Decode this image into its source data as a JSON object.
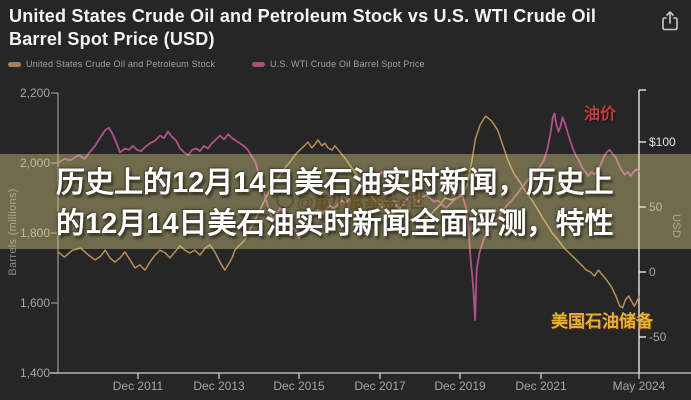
{
  "header": {
    "title": "United States Crude Oil and Petroleum Stock vs U.S. WTI Crude Oil Barrel Spot Price (USD)"
  },
  "legend": [
    {
      "label": "United States Crude Oil and Petroleum Stock",
      "color": "#a5815a"
    },
    {
      "label": "U.S. WTI Crude Oil Barrel Spot Price",
      "color": "#a6527f"
    }
  ],
  "overlay": {
    "heading_line1": "历史上的12月14日美石油实时新闻，历史上",
    "heading_line2": "的12月14日美石油实时新闻全面评测，特性",
    "watermark": "@童小富基金e世"
  },
  "annotations": {
    "price_label": "油价",
    "stock_label": "美国石油储备"
  },
  "chart_data": {
    "type": "line",
    "title": "United States Crude Oil and Petroleum Stock vs U.S. WTI Crude Oil Barrel Spot Price (USD)",
    "legend_position": "top-left",
    "grid": false,
    "axes": {
      "left": {
        "title": "Barrels (millions)",
        "ticks": [
          "2,200",
          "2,000",
          "1,800",
          "1,600",
          "1,400"
        ],
        "range": [
          1400,
          2200
        ]
      },
      "right": {
        "title": "USD",
        "ticks": [
          "$100",
          "50",
          "0",
          "-50"
        ],
        "range": [
          -50,
          100
        ]
      },
      "x": {
        "ticks": [
          "Dec 2011",
          "Dec 2013",
          "Dec 2015",
          "Dec 2017",
          "Dec 2019",
          "Dec 2021",
          "May 2024"
        ],
        "range_years": [
          2009.94,
          2024.37
        ]
      }
    },
    "series": [
      {
        "name": "United States Crude Oil and Petroleum Stock",
        "axis": "left",
        "units": "million barrels",
        "color": "#b59059",
        "points": [
          [
            2009.94,
            1746
          ],
          [
            2010.1,
            1731
          ],
          [
            2010.3,
            1751
          ],
          [
            2010.5,
            1757
          ],
          [
            2010.7,
            1737
          ],
          [
            2010.86,
            1723
          ],
          [
            2011.0,
            1734
          ],
          [
            2011.11,
            1751
          ],
          [
            2011.23,
            1729
          ],
          [
            2011.35,
            1717
          ],
          [
            2011.48,
            1729
          ],
          [
            2011.6,
            1746
          ],
          [
            2011.73,
            1723
          ],
          [
            2011.85,
            1700
          ],
          [
            2011.97,
            1709
          ],
          [
            2012.1,
            1694
          ],
          [
            2012.22,
            1717
          ],
          [
            2012.35,
            1737
          ],
          [
            2012.47,
            1751
          ],
          [
            2012.6,
            1743
          ],
          [
            2012.72,
            1729
          ],
          [
            2012.84,
            1746
          ],
          [
            2012.97,
            1763
          ],
          [
            2013.09,
            1751
          ],
          [
            2013.21,
            1743
          ],
          [
            2013.34,
            1751
          ],
          [
            2013.46,
            1737
          ],
          [
            2013.59,
            1757
          ],
          [
            2013.71,
            1766
          ],
          [
            2013.83,
            1746
          ],
          [
            2013.96,
            1717
          ],
          [
            2014.08,
            1694
          ],
          [
            2014.16,
            1709
          ],
          [
            2014.26,
            1729
          ],
          [
            2014.33,
            1751
          ],
          [
            2014.45,
            1766
          ],
          [
            2014.58,
            1780
          ],
          [
            2014.7,
            1809
          ],
          [
            2014.83,
            1837
          ],
          [
            2014.95,
            1866
          ],
          [
            2015.07,
            1894
          ],
          [
            2015.2,
            1923
          ],
          [
            2015.32,
            1946
          ],
          [
            2015.45,
            1966
          ],
          [
            2015.57,
            1986
          ],
          [
            2015.7,
            2003
          ],
          [
            2015.82,
            2023
          ],
          [
            2015.94,
            2037
          ],
          [
            2016.07,
            2051
          ],
          [
            2016.14,
            2060
          ],
          [
            2016.24,
            2043
          ],
          [
            2016.32,
            2054
          ],
          [
            2016.39,
            2066
          ],
          [
            2016.49,
            2049
          ],
          [
            2016.56,
            2057
          ],
          [
            2016.64,
            2043
          ],
          [
            2016.74,
            2037
          ],
          [
            2016.81,
            2049
          ],
          [
            2016.94,
            2031
          ],
          [
            2017.06,
            2014
          ],
          [
            2017.18,
            1994
          ],
          [
            2017.31,
            1974
          ],
          [
            2017.43,
            1951
          ],
          [
            2017.56,
            1929
          ],
          [
            2017.68,
            1909
          ],
          [
            2017.8,
            1894
          ],
          [
            2017.93,
            1880
          ],
          [
            2018.05,
            1866
          ],
          [
            2018.18,
            1851
          ],
          [
            2018.3,
            1860
          ],
          [
            2018.42,
            1871
          ],
          [
            2018.55,
            1851
          ],
          [
            2018.67,
            1837
          ],
          [
            2018.8,
            1843
          ],
          [
            2018.92,
            1831
          ],
          [
            2019.04,
            1843
          ],
          [
            2019.17,
            1851
          ],
          [
            2019.29,
            1866
          ],
          [
            2019.42,
            1880
          ],
          [
            2019.54,
            1900
          ],
          [
            2019.7,
            1895
          ],
          [
            2019.85,
            1902
          ],
          [
            2020.0,
            1910
          ],
          [
            2020.1,
            1940
          ],
          [
            2020.2,
            2000
          ],
          [
            2020.3,
            2070
          ],
          [
            2020.42,
            2110
          ],
          [
            2020.55,
            2134
          ],
          [
            2020.7,
            2120
          ],
          [
            2020.85,
            2094
          ],
          [
            2020.95,
            2060
          ],
          [
            2021.1,
            2010
          ],
          [
            2021.25,
            1970
          ],
          [
            2021.4,
            1946
          ],
          [
            2021.55,
            1917
          ],
          [
            2021.7,
            1894
          ],
          [
            2021.85,
            1866
          ],
          [
            2021.95,
            1846
          ],
          [
            2022.1,
            1820
          ],
          [
            2022.2,
            1800
          ],
          [
            2022.35,
            1780
          ],
          [
            2022.5,
            1757
          ],
          [
            2022.65,
            1740
          ],
          [
            2022.8,
            1723
          ],
          [
            2022.95,
            1706
          ],
          [
            2023.05,
            1694
          ],
          [
            2023.15,
            1689
          ],
          [
            2023.25,
            1677
          ],
          [
            2023.35,
            1694
          ],
          [
            2023.45,
            1680
          ],
          [
            2023.55,
            1666
          ],
          [
            2023.68,
            1645
          ],
          [
            2023.78,
            1620
          ],
          [
            2023.88,
            1591
          ],
          [
            2023.95,
            1586
          ],
          [
            2024.02,
            1609
          ],
          [
            2024.1,
            1620
          ],
          [
            2024.17,
            1605
          ],
          [
            2024.24,
            1591
          ],
          [
            2024.3,
            1603
          ],
          [
            2024.37,
            1620
          ]
        ]
      },
      {
        "name": "U.S. WTI Crude Oil Barrel Spot Price",
        "axis": "right",
        "units": "USD",
        "color": "#b05189",
        "points": [
          [
            2009.94,
            84
          ],
          [
            2010.1,
            87
          ],
          [
            2010.25,
            86
          ],
          [
            2010.45,
            90
          ],
          [
            2010.6,
            87
          ],
          [
            2010.75,
            93
          ],
          [
            2010.86,
            97
          ],
          [
            2010.98,
            103
          ],
          [
            2011.11,
            109
          ],
          [
            2011.2,
            111
          ],
          [
            2011.28,
            107
          ],
          [
            2011.38,
            100
          ],
          [
            2011.48,
            92
          ],
          [
            2011.6,
            95
          ],
          [
            2011.7,
            94
          ],
          [
            2011.8,
            97
          ],
          [
            2011.9,
            94
          ],
          [
            2012.0,
            93
          ],
          [
            2012.1,
            96
          ],
          [
            2012.22,
            99
          ],
          [
            2012.35,
            101
          ],
          [
            2012.47,
            105
          ],
          [
            2012.57,
            103
          ],
          [
            2012.67,
            108
          ],
          [
            2012.77,
            104
          ],
          [
            2012.87,
            101
          ],
          [
            2012.97,
            95
          ],
          [
            2013.07,
            92
          ],
          [
            2013.17,
            90
          ],
          [
            2013.27,
            94
          ],
          [
            2013.37,
            95
          ],
          [
            2013.46,
            93
          ],
          [
            2013.56,
            97
          ],
          [
            2013.66,
            95
          ],
          [
            2013.76,
            99
          ],
          [
            2013.86,
            102
          ],
          [
            2013.96,
            105
          ],
          [
            2014.06,
            102
          ],
          [
            2014.16,
            106
          ],
          [
            2014.26,
            103
          ],
          [
            2014.36,
            101
          ],
          [
            2014.45,
            99
          ],
          [
            2014.55,
            97
          ],
          [
            2014.65,
            94
          ],
          [
            2014.75,
            89
          ],
          [
            2014.83,
            85
          ],
          [
            2014.9,
            78
          ],
          [
            2014.98,
            71
          ],
          [
            2015.05,
            62
          ],
          [
            2015.12,
            53
          ],
          [
            2015.2,
            46
          ],
          [
            2015.27,
            40
          ],
          [
            2015.35,
            44
          ],
          [
            2015.45,
            49
          ],
          [
            2015.55,
            46
          ],
          [
            2015.65,
            42
          ],
          [
            2015.75,
            35
          ],
          [
            2015.85,
            31
          ],
          [
            2015.92,
            26
          ],
          [
            2016.0,
            31
          ],
          [
            2016.1,
            36
          ],
          [
            2016.2,
            42
          ],
          [
            2016.3,
            45
          ],
          [
            2016.39,
            48
          ],
          [
            2016.49,
            45
          ],
          [
            2016.59,
            48
          ],
          [
            2016.69,
            51
          ],
          [
            2016.79,
            49
          ],
          [
            2016.89,
            52
          ],
          [
            2016.99,
            55
          ],
          [
            2017.09,
            53
          ],
          [
            2017.18,
            57
          ],
          [
            2017.28,
            60
          ],
          [
            2017.38,
            63
          ],
          [
            2017.48,
            66
          ],
          [
            2017.58,
            63
          ],
          [
            2017.68,
            67
          ],
          [
            2017.78,
            71
          ],
          [
            2017.88,
            74
          ],
          [
            2017.98,
            77
          ],
          [
            2018.08,
            72
          ],
          [
            2018.18,
            65
          ],
          [
            2018.28,
            55
          ],
          [
            2018.38,
            48
          ],
          [
            2018.48,
            51
          ],
          [
            2018.57,
            55
          ],
          [
            2018.67,
            58
          ],
          [
            2018.77,
            57
          ],
          [
            2018.87,
            54
          ],
          [
            2018.97,
            57
          ],
          [
            2019.07,
            59
          ],
          [
            2019.17,
            57
          ],
          [
            2019.27,
            54
          ],
          [
            2019.37,
            55
          ],
          [
            2019.47,
            52
          ],
          [
            2019.57,
            49
          ],
          [
            2019.66,
            52
          ],
          [
            2019.76,
            55
          ],
          [
            2019.86,
            57
          ],
          [
            2019.96,
            60
          ],
          [
            2020.06,
            50
          ],
          [
            2020.12,
            35
          ],
          [
            2020.18,
            9
          ],
          [
            2020.24,
            -10
          ],
          [
            2020.29,
            -37
          ],
          [
            2020.33,
            2
          ],
          [
            2020.4,
            15
          ],
          [
            2020.5,
            25
          ],
          [
            2020.6,
            31
          ],
          [
            2020.7,
            35
          ],
          [
            2020.8,
            40
          ],
          [
            2020.9,
            44
          ],
          [
            2021.0,
            48
          ],
          [
            2021.1,
            52
          ],
          [
            2021.2,
            55
          ],
          [
            2021.3,
            59
          ],
          [
            2021.4,
            63
          ],
          [
            2021.5,
            67
          ],
          [
            2021.6,
            71
          ],
          [
            2021.7,
            74
          ],
          [
            2021.8,
            77
          ],
          [
            2021.9,
            81
          ],
          [
            2022.0,
            86
          ],
          [
            2022.08,
            94
          ],
          [
            2022.15,
            105
          ],
          [
            2022.22,
            119
          ],
          [
            2022.26,
            122
          ],
          [
            2022.31,
            113
          ],
          [
            2022.36,
            108
          ],
          [
            2022.41,
            112
          ],
          [
            2022.46,
            119
          ],
          [
            2022.51,
            115
          ],
          [
            2022.58,
            108
          ],
          [
            2022.66,
            100
          ],
          [
            2022.73,
            94
          ],
          [
            2022.8,
            89
          ],
          [
            2022.88,
            85
          ],
          [
            2022.95,
            80
          ],
          [
            2023.03,
            77
          ],
          [
            2023.1,
            74
          ],
          [
            2023.18,
            77
          ],
          [
            2023.25,
            75
          ],
          [
            2023.33,
            78
          ],
          [
            2023.4,
            82
          ],
          [
            2023.48,
            88
          ],
          [
            2023.55,
            92
          ],
          [
            2023.63,
            94
          ],
          [
            2023.7,
            91
          ],
          [
            2023.78,
            88
          ],
          [
            2023.85,
            83
          ],
          [
            2023.93,
            78
          ],
          [
            2024.0,
            75
          ],
          [
            2024.08,
            77
          ],
          [
            2024.15,
            74
          ],
          [
            2024.22,
            77
          ],
          [
            2024.3,
            79
          ],
          [
            2024.37,
            77
          ]
        ]
      }
    ]
  }
}
